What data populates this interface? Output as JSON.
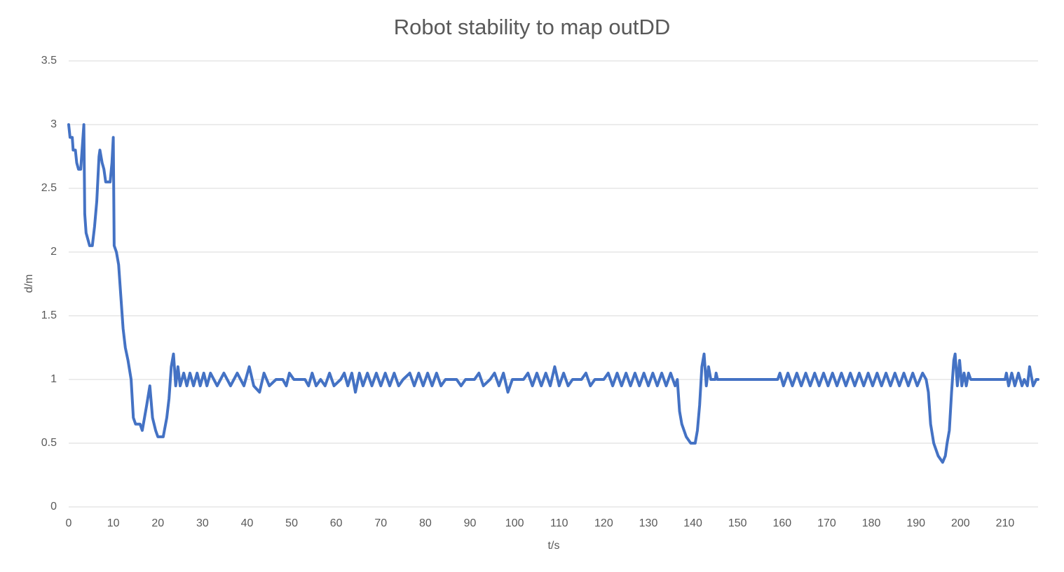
{
  "chart_data": {
    "type": "line",
    "title": "Robot stability to map outDD",
    "x_label": "t/s",
    "y_label": "d/m",
    "color": "#4472c4",
    "grid": true,
    "xlim": [
      0,
      217.4
    ],
    "xticks": [
      0,
      10,
      20,
      30,
      40,
      50,
      60,
      70,
      80,
      90,
      100,
      110,
      120,
      130,
      140,
      150,
      160,
      170,
      180,
      190,
      200,
      210
    ],
    "ylim": [
      0,
      3.5
    ],
    "yticks": [
      0,
      0.5,
      1,
      1.5,
      2,
      2.5,
      3,
      3.5
    ],
    "x": [
      0,
      0.3,
      0.8,
      1,
      1.5,
      1.8,
      2.2,
      2.7,
      3,
      3.4,
      3.6,
      3.9,
      4.3,
      4.7,
      5.3,
      5.8,
      6.3,
      6.8,
      7,
      7.5,
      7.9,
      8.3,
      9.3,
      9.7,
      10,
      10.2,
      10.7,
      11.2,
      11.7,
      12.2,
      12.7,
      13.3,
      14,
      14.5,
      15,
      16,
      16.5,
      17,
      17.5,
      18.2,
      18.8,
      19.5,
      20,
      21.2,
      22,
      22.5,
      23,
      23.5,
      24,
      24.5,
      25,
      25.8,
      26.5,
      27.2,
      28,
      28.8,
      29.5,
      30.3,
      31,
      31.8,
      33.3,
      34.8,
      36.3,
      37.8,
      39.3,
      40.5,
      41.5,
      42.8,
      43.8,
      45,
      46.5,
      48,
      48.8,
      49.5,
      50.5,
      53,
      53.8,
      54.6,
      55.5,
      56.5,
      57.5,
      58.5,
      59.5,
      61,
      61.8,
      62.6,
      63.5,
      64.3,
      65.2,
      66,
      67,
      68,
      69,
      70,
      71,
      72,
      73,
      74,
      75,
      76.5,
      77.5,
      78.5,
      79.5,
      80.5,
      81.5,
      82.5,
      83.5,
      84.5,
      87,
      88,
      89,
      91,
      92,
      93,
      94.5,
      95.5,
      96.5,
      97.5,
      98.5,
      99.5,
      102,
      103,
      104,
      105,
      106,
      107,
      108,
      109,
      110,
      111,
      112,
      113,
      115,
      116,
      117,
      118,
      120,
      121,
      122,
      123,
      124,
      125,
      126,
      127,
      128,
      129,
      130,
      131,
      132,
      133,
      134,
      135,
      136,
      136.5,
      137,
      137.5,
      138.5,
      139.5,
      140.5,
      141,
      141.5,
      142,
      142.5,
      143,
      143.5,
      144,
      145,
      145.2,
      145.5,
      159,
      159.5,
      160.3,
      161.3,
      162.3,
      163.3,
      164.3,
      165.3,
      166.3,
      167.3,
      168.3,
      169.3,
      170.3,
      171.3,
      172.3,
      173.3,
      174.3,
      175.3,
      176.3,
      177.3,
      178.3,
      179.3,
      180.3,
      181.3,
      182.3,
      183.3,
      184.3,
      185.3,
      186.3,
      187.3,
      188.3,
      189.3,
      190.3,
      191.5,
      192.3,
      192.8,
      193.3,
      194,
      195,
      196,
      196.6,
      197,
      197.5,
      198,
      198.5,
      198.8,
      199.3,
      199.8,
      200.3,
      200.8,
      201.3,
      201.8,
      202.3,
      210,
      210.3,
      210.8,
      211.5,
      212.2,
      213,
      213.8,
      214.3,
      215,
      215.5,
      216.3,
      217,
      217.4
    ],
    "values": [
      3,
      2.9,
      2.9,
      2.8,
      2.8,
      2.7,
      2.65,
      2.65,
      2.8,
      3,
      2.3,
      2.15,
      2.1,
      2.05,
      2.05,
      2.2,
      2.4,
      2.75,
      2.8,
      2.7,
      2.65,
      2.55,
      2.55,
      2.7,
      2.9,
      2.05,
      2,
      1.9,
      1.65,
      1.4,
      1.25,
      1.15,
      1,
      0.7,
      0.65,
      0.65,
      0.6,
      0.7,
      0.8,
      0.95,
      0.7,
      0.6,
      0.55,
      0.55,
      0.7,
      0.85,
      1.1,
      1.2,
      0.95,
      1.1,
      0.95,
      1.05,
      0.95,
      1.05,
      0.95,
      1.05,
      0.95,
      1.05,
      0.95,
      1.05,
      0.95,
      1.05,
      0.95,
      1.05,
      0.95,
      1.1,
      0.95,
      0.9,
      1.05,
      0.95,
      1,
      1,
      0.95,
      1.05,
      1,
      1,
      0.95,
      1.05,
      0.95,
      1,
      0.95,
      1.05,
      0.95,
      1,
      1.05,
      0.95,
      1.05,
      0.9,
      1.05,
      0.95,
      1.05,
      0.95,
      1.05,
      0.95,
      1.05,
      0.95,
      1.05,
      0.95,
      1,
      1.05,
      0.95,
      1.05,
      0.95,
      1.05,
      0.95,
      1.05,
      0.95,
      1,
      1,
      0.95,
      1,
      1,
      1.05,
      0.95,
      1,
      1.05,
      0.95,
      1.05,
      0.9,
      1,
      1,
      1.05,
      0.95,
      1.05,
      0.95,
      1.05,
      0.95,
      1.1,
      0.95,
      1.05,
      0.95,
      1,
      1,
      1.05,
      0.95,
      1,
      1,
      1.05,
      0.95,
      1.05,
      0.95,
      1.05,
      0.95,
      1.05,
      0.95,
      1.05,
      0.95,
      1.05,
      0.95,
      1.05,
      0.95,
      1.05,
      0.95,
      1,
      0.75,
      0.65,
      0.55,
      0.5,
      0.5,
      0.6,
      0.8,
      1.1,
      1.2,
      0.95,
      1.1,
      1,
      1,
      1.05,
      1,
      1,
      1.05,
      0.95,
      1.05,
      0.95,
      1.05,
      0.95,
      1.05,
      0.95,
      1.05,
      0.95,
      1.05,
      0.95,
      1.05,
      0.95,
      1.05,
      0.95,
      1.05,
      0.95,
      1.05,
      0.95,
      1.05,
      0.95,
      1.05,
      0.95,
      1.05,
      0.95,
      1.05,
      0.95,
      1.05,
      0.95,
      1.05,
      0.95,
      1.05,
      1,
      0.9,
      0.65,
      0.5,
      0.4,
      0.35,
      0.4,
      0.5,
      0.6,
      0.9,
      1.15,
      1.2,
      0.95,
      1.15,
      0.95,
      1.05,
      0.95,
      1.05,
      1,
      1,
      1.05,
      0.95,
      1.05,
      0.95,
      1.05,
      0.95,
      1,
      0.95,
      1.1,
      0.95,
      1,
      1
    ]
  }
}
